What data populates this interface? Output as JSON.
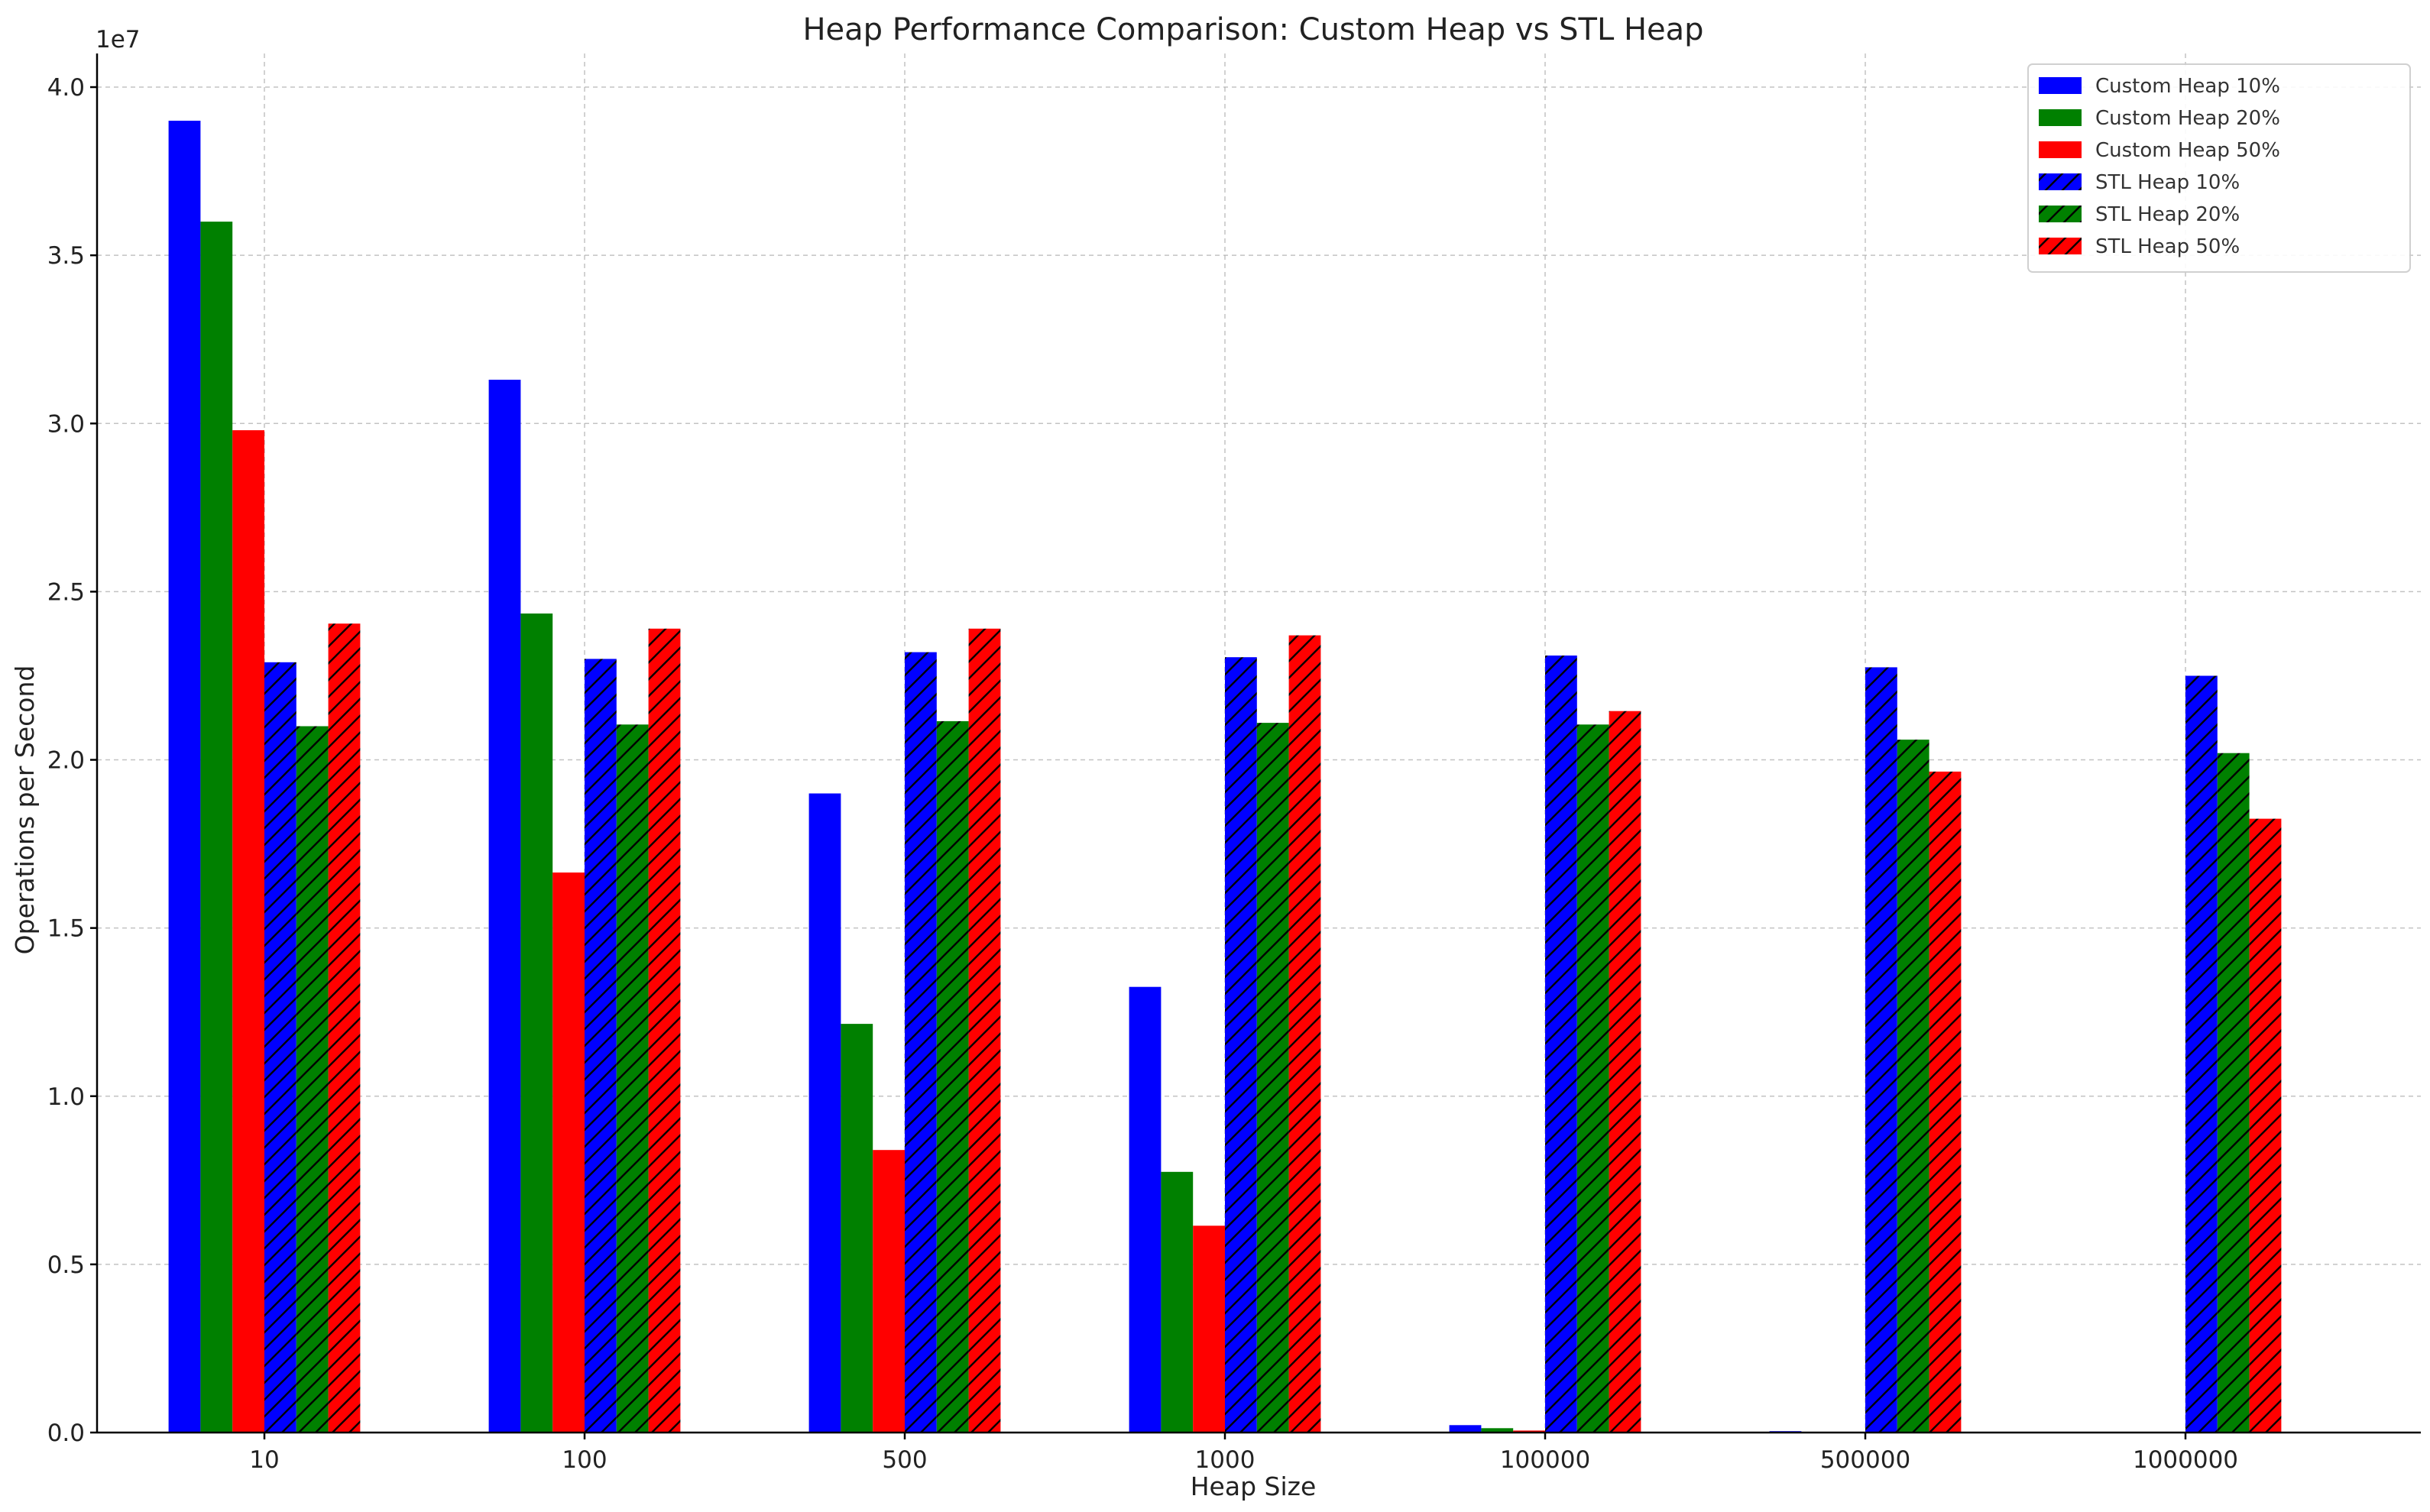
{
  "chart_data": {
    "type": "bar",
    "title": "Heap Performance Comparison: Custom Heap vs STL Heap",
    "xlabel": "Heap Size",
    "ylabel": "Operations per Second",
    "y_offset_label": "1e7",
    "y_scale": 10000000,
    "ylim": [
      0,
      41000000
    ],
    "y_ticks": [
      0,
      5000000,
      10000000,
      15000000,
      20000000,
      25000000,
      30000000,
      35000000,
      40000000
    ],
    "y_tick_labels": [
      "0.0",
      "0.5",
      "1.0",
      "1.5",
      "2.0",
      "2.5",
      "3.0",
      "3.5",
      "4.0"
    ],
    "grid": true,
    "legend_position": "top-right",
    "categories": [
      "10",
      "100",
      "500",
      "1000",
      "100000",
      "500000",
      "1000000"
    ],
    "series": [
      {
        "name": "Custom Heap 10%",
        "color": "#0000ff",
        "hatch": false,
        "values": [
          39000000,
          31300000,
          19000000,
          13250000,
          220000,
          40000,
          10000
        ]
      },
      {
        "name": "Custom Heap 20%",
        "color": "#008000",
        "hatch": false,
        "values": [
          36000000,
          24350000,
          12150000,
          7750000,
          130000,
          20000,
          5000
        ]
      },
      {
        "name": "Custom Heap 50%",
        "color": "#ff0000",
        "hatch": false,
        "values": [
          29800000,
          16650000,
          8400000,
          6150000,
          60000,
          10000,
          2000
        ]
      },
      {
        "name": "STL Heap 10%",
        "color": "#0000ff",
        "hatch": true,
        "values": [
          22900000,
          23000000,
          23200000,
          23050000,
          23100000,
          22750000,
          22500000
        ]
      },
      {
        "name": "STL Heap 20%",
        "color": "#008000",
        "hatch": true,
        "values": [
          21000000,
          21050000,
          21150000,
          21100000,
          21050000,
          20600000,
          20200000
        ]
      },
      {
        "name": "STL Heap 50%",
        "color": "#ff0000",
        "hatch": true,
        "values": [
          24050000,
          23900000,
          23900000,
          23700000,
          21450000,
          19650000,
          18250000
        ]
      }
    ]
  }
}
